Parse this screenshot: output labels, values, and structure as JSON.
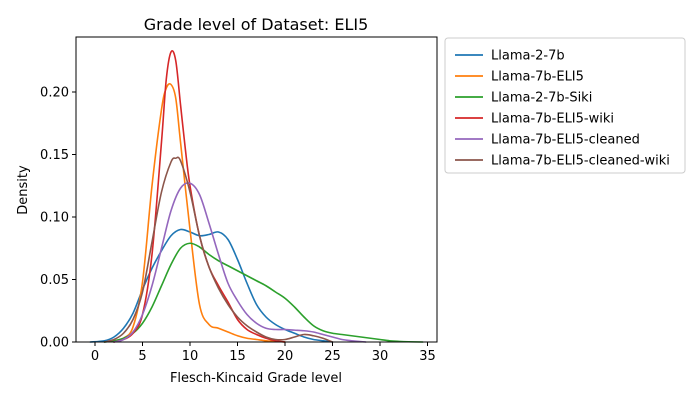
{
  "chart_data": {
    "type": "line",
    "title": "Grade level of Dataset: ELI5",
    "xlabel": "Flesch-Kincaid Grade level",
    "ylabel": "Density",
    "xlim": [
      -2.0,
      36.0
    ],
    "ylim": [
      0.0,
      0.244
    ],
    "xticks": [
      0,
      5,
      10,
      15,
      20,
      25,
      30,
      35
    ],
    "xtick_labels": [
      "0",
      "5",
      "10",
      "15",
      "20",
      "25",
      "30",
      "35"
    ],
    "yticks": [
      0.0,
      0.05,
      0.1,
      0.15,
      0.2
    ],
    "ytick_labels": [
      "0.00",
      "0.05",
      "0.10",
      "0.15",
      "0.20"
    ],
    "grid": false,
    "legend": "outside-right-top",
    "series": [
      {
        "name": "Llama-2-7b",
        "color": "#1f77b4",
        "x": [
          -0.5,
          1,
          2,
          3,
          4,
          5,
          6,
          7,
          8,
          9,
          10,
          11,
          12,
          13,
          14,
          15,
          16,
          17,
          18,
          19,
          20,
          21,
          22,
          23,
          24,
          25
        ],
        "y": [
          0.0,
          0.001,
          0.004,
          0.011,
          0.023,
          0.042,
          0.059,
          0.073,
          0.085,
          0.09,
          0.088,
          0.085,
          0.086,
          0.088,
          0.082,
          0.066,
          0.047,
          0.03,
          0.02,
          0.014,
          0.01,
          0.007,
          0.004,
          0.002,
          0.001,
          0.0
        ]
      },
      {
        "name": "Llama-7b-ELI5",
        "color": "#ff7f0e",
        "x": [
          2,
          3,
          4,
          5,
          6,
          7,
          7.5,
          8,
          8.5,
          9,
          10,
          11,
          12,
          13,
          14,
          15,
          16,
          17,
          18,
          19,
          20
        ],
        "y": [
          0.0,
          0.003,
          0.012,
          0.048,
          0.125,
          0.186,
          0.203,
          0.206,
          0.195,
          0.16,
          0.09,
          0.03,
          0.014,
          0.011,
          0.008,
          0.005,
          0.003,
          0.002,
          0.001,
          0.0005,
          0.0
        ]
      },
      {
        "name": "Llama-2-7b-Siki",
        "color": "#2ca02c",
        "x": [
          1,
          2,
          3,
          4,
          5,
          6,
          7,
          8,
          9,
          10,
          11,
          12,
          13,
          14,
          15,
          16,
          17,
          18,
          19,
          20,
          21,
          22,
          23,
          24,
          25,
          26,
          27,
          28,
          29,
          30,
          31,
          32,
          33,
          34.5
        ],
        "y": [
          0.0,
          0.001,
          0.003,
          0.007,
          0.015,
          0.028,
          0.045,
          0.062,
          0.075,
          0.079,
          0.076,
          0.07,
          0.065,
          0.061,
          0.057,
          0.053,
          0.049,
          0.045,
          0.04,
          0.035,
          0.028,
          0.02,
          0.013,
          0.009,
          0.007,
          0.006,
          0.005,
          0.004,
          0.003,
          0.002,
          0.001,
          0.0005,
          0.0002,
          0.0
        ]
      },
      {
        "name": "Llama-7b-ELI5-wiki",
        "color": "#d62728",
        "x": [
          2,
          3,
          4,
          5,
          6,
          7,
          7.5,
          8,
          8.5,
          9,
          9.5,
          10,
          11,
          12,
          13,
          14,
          15,
          16,
          17,
          18,
          19,
          20
        ],
        "y": [
          0.0,
          0.002,
          0.007,
          0.022,
          0.07,
          0.16,
          0.21,
          0.232,
          0.225,
          0.19,
          0.155,
          0.125,
          0.085,
          0.06,
          0.045,
          0.032,
          0.018,
          0.01,
          0.006,
          0.003,
          0.001,
          0.0
        ]
      },
      {
        "name": "Llama-7b-ELI5-cleaned",
        "color": "#9467bd",
        "x": [
          2,
          3,
          4,
          5,
          6,
          7,
          8,
          9,
          10,
          11,
          12,
          13,
          14,
          15,
          16,
          17,
          18,
          19,
          20,
          21,
          22,
          23,
          24,
          25,
          26,
          27,
          28.5
        ],
        "y": [
          0.0,
          0.002,
          0.008,
          0.022,
          0.045,
          0.075,
          0.105,
          0.123,
          0.127,
          0.118,
          0.095,
          0.07,
          0.047,
          0.033,
          0.022,
          0.015,
          0.011,
          0.01,
          0.01,
          0.0095,
          0.009,
          0.008,
          0.006,
          0.004,
          0.002,
          0.001,
          0.0
        ]
      },
      {
        "name": "Llama-7b-ELI5-cleaned-wiki",
        "color": "#8c564b",
        "x": [
          1,
          2,
          3,
          4,
          5,
          6,
          7,
          8,
          8.5,
          9,
          10,
          11,
          12,
          13,
          14,
          15,
          16,
          17,
          18,
          19,
          20,
          21,
          22,
          23,
          24,
          25
        ],
        "y": [
          0.0,
          0.002,
          0.007,
          0.018,
          0.04,
          0.08,
          0.12,
          0.144,
          0.147,
          0.145,
          0.12,
          0.085,
          0.06,
          0.043,
          0.03,
          0.02,
          0.013,
          0.008,
          0.004,
          0.002,
          0.002,
          0.004,
          0.006,
          0.005,
          0.003,
          0.0
        ]
      }
    ]
  }
}
